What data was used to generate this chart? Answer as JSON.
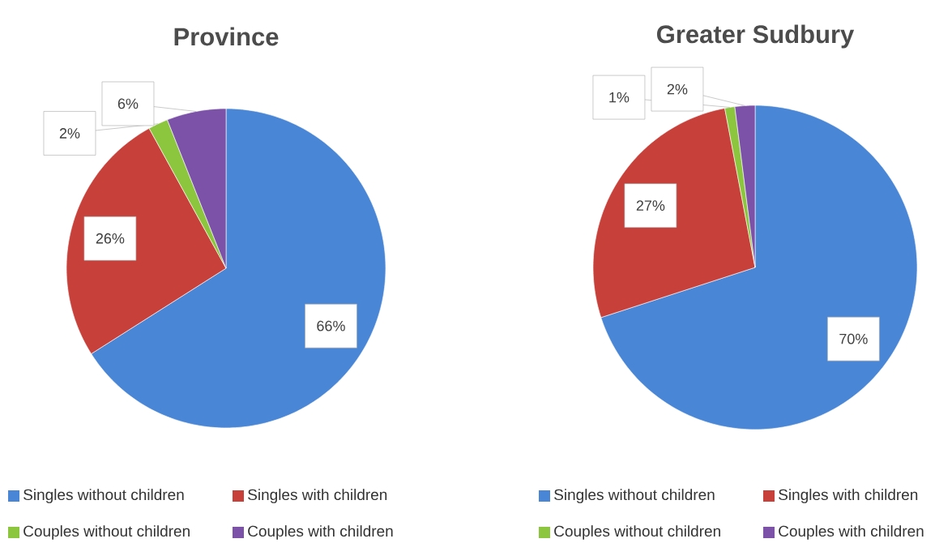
{
  "chart_data": [
    {
      "type": "pie",
      "title": "Province",
      "categories": [
        "Singles without children",
        "Singles with children",
        "Couples without children",
        "Couples with children"
      ],
      "values": [
        66,
        26,
        2,
        6
      ],
      "value_labels": [
        "66%",
        "26%",
        "2%",
        "6%"
      ],
      "colors": [
        "#4a86d6",
        "#c8403a",
        "#8cc63f",
        "#7b52a8"
      ],
      "legend": "bottom"
    },
    {
      "type": "pie",
      "title": "Greater Sudbury",
      "categories": [
        "Singles without children",
        "Singles with children",
        "Couples without children",
        "Couples with children"
      ],
      "values": [
        70,
        27,
        1,
        2
      ],
      "value_labels": [
        "70%",
        "27%",
        "1%",
        "2%"
      ],
      "colors": [
        "#4a86d6",
        "#c8403a",
        "#8cc63f",
        "#7b52a8"
      ],
      "legend": "bottom"
    }
  ]
}
